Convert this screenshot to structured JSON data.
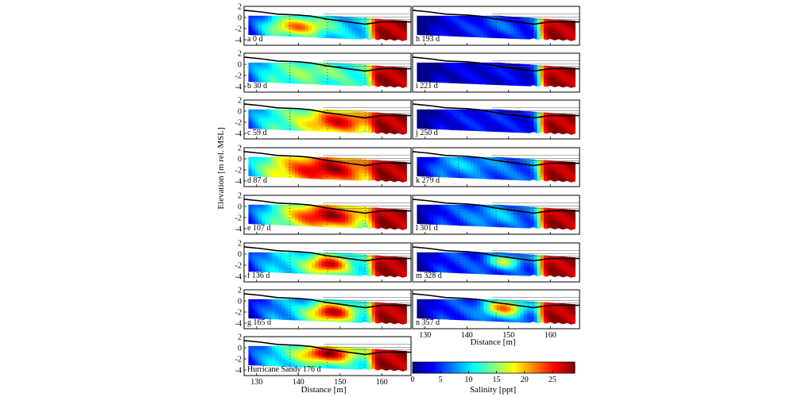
{
  "figure": {
    "ylabel": "Elevation [m rel. MSL]",
    "xlabel": "Distance [m]",
    "colorbar_label": "Salinity [ppt]"
  },
  "chart_data": {
    "type": "heatmap",
    "xlabel": "Distance [m]",
    "ylabel": "Elevation [m rel. MSL]",
    "xlim": [
      127,
      167
    ],
    "ylim": [
      -5,
      2
    ],
    "xticks": [
      130,
      140,
      150,
      160
    ],
    "yticks": [
      2,
      0,
      -2,
      -4
    ],
    "colorbar": {
      "label": "Salinity [ppt]",
      "range": [
        0,
        29
      ],
      "ticks": [
        0,
        5,
        10,
        15,
        20,
        25
      ],
      "colormap": [
        "#00008f",
        "#0000ff",
        "#0080ff",
        "#00ffff",
        "#80ff80",
        "#ffff00",
        "#ff8000",
        "#ff0000",
        "#800000"
      ]
    },
    "panels": [
      {
        "letter": "a",
        "label": "0 d",
        "fresh": 9,
        "plume": {
          "x": 140,
          "y": -1.6,
          "s": 22,
          "rx": 7,
          "ry": 1.6
        }
      },
      {
        "letter": "b",
        "label": "30 d",
        "fresh": 12,
        "plume": {
          "x": 143,
          "y": -1.4,
          "s": 15,
          "rx": 7,
          "ry": 1.4
        }
      },
      {
        "letter": "c",
        "label": "59 d",
        "fresh": 12,
        "plume": {
          "x": 150,
          "y": -1.8,
          "s": 26,
          "rx": 9,
          "ry": 2.2
        }
      },
      {
        "letter": "d",
        "label": "87 d",
        "fresh": 14,
        "plume": {
          "x": 147,
          "y": -1.8,
          "s": 28,
          "rx": 11,
          "ry": 2.6
        }
      },
      {
        "letter": "e",
        "label": "107 d",
        "fresh": 10,
        "plume": {
          "x": 147,
          "y": -1.6,
          "s": 28,
          "rx": 10,
          "ry": 2.4
        }
      },
      {
        "letter": "f",
        "label": "136 d",
        "fresh": 10,
        "plume": {
          "x": 147,
          "y": -1.8,
          "s": 27,
          "rx": 5,
          "ry": 1.6
        }
      },
      {
        "letter": "g",
        "label": "165 d",
        "fresh": 8,
        "plume": {
          "x": 148,
          "y": -2.0,
          "s": 27,
          "rx": 6,
          "ry": 1.8
        }
      },
      {
        "letter": "",
        "label": "Hurricane Sandy  176 d",
        "fresh": 10,
        "plume": {
          "x": 147,
          "y": -1.0,
          "s": 28,
          "rx": 7,
          "ry": 1.6
        }
      },
      {
        "letter": "h",
        "label": "193 d",
        "fresh": 3,
        "plume": {
          "x": 148,
          "y": -1.5,
          "s": 6,
          "rx": 8,
          "ry": 2
        }
      },
      {
        "letter": "i",
        "label": "221 d",
        "fresh": 2,
        "plume": {
          "x": 148,
          "y": -1.5,
          "s": 3,
          "rx": 8,
          "ry": 2
        }
      },
      {
        "letter": "j",
        "label": "250 d",
        "fresh": 3,
        "plume": {
          "x": 145,
          "y": -1.5,
          "s": 4,
          "rx": 8,
          "ry": 2
        }
      },
      {
        "letter": "k",
        "label": "279 d",
        "fresh": 6,
        "plume": {
          "x": 139,
          "y": -1.0,
          "s": 9,
          "rx": 8,
          "ry": 1.6
        }
      },
      {
        "letter": "l",
        "label": "301 d",
        "fresh": 5,
        "plume": {
          "x": 147,
          "y": -1.5,
          "s": 9,
          "rx": 7,
          "ry": 2
        }
      },
      {
        "letter": "m",
        "label": "328 d",
        "fresh": 5,
        "plume": {
          "x": 149,
          "y": -1.3,
          "s": 16,
          "rx": 4,
          "ry": 1.2
        }
      },
      {
        "letter": "n",
        "label": "357 d",
        "fresh": 5,
        "plume": {
          "x": 149,
          "y": -1.2,
          "s": 22,
          "rx": 5,
          "ry": 1.6
        }
      }
    ]
  }
}
